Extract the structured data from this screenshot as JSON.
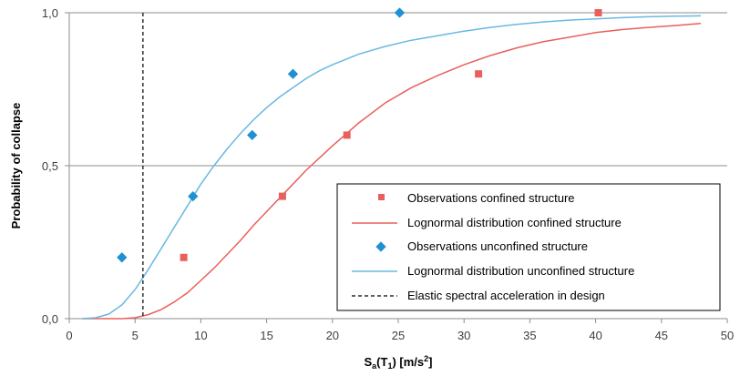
{
  "chart_data": {
    "type": "scatter",
    "xlabel": {
      "main": "S",
      "sub1": "a",
      "paren_open": "(T",
      "sub2": "1",
      "unit": ") [m/s",
      "sup": "2",
      "close": "]"
    },
    "ylabel": "Probability of collapse",
    "xlim": [
      0,
      50
    ],
    "ylim": [
      0,
      1
    ],
    "x_ticks": [
      0,
      5,
      10,
      15,
      20,
      25,
      30,
      35,
      40,
      45,
      50
    ],
    "y_ticks": [
      0,
      0.5,
      1
    ],
    "y_tick_labels": [
      "0,0",
      "0,5",
      "1,0"
    ],
    "grid": "horizontal",
    "legend_position": "bottom-right",
    "series": [
      {
        "name": "Observations confined structure",
        "kind": "scatter",
        "marker": "square",
        "color": "#e8605d",
        "x": [
          8.7,
          16.2,
          21.1,
          31.1,
          40.2
        ],
        "y": [
          0.2,
          0.4,
          0.6,
          0.8,
          1.0
        ]
      },
      {
        "name": "Lognormal distribution confined structure",
        "kind": "line",
        "color": "#e8605d",
        "x": [
          1,
          2,
          3,
          4,
          5,
          6,
          7,
          8,
          9,
          10,
          11,
          12,
          13,
          14,
          15,
          16,
          17,
          18,
          19,
          20,
          22,
          24,
          26,
          28,
          30,
          32,
          34,
          36,
          38,
          40,
          42,
          44,
          46,
          48
        ],
        "y": [
          0,
          0,
          0,
          0,
          0.003,
          0.013,
          0.03,
          0.055,
          0.085,
          0.125,
          0.165,
          0.21,
          0.255,
          0.305,
          0.35,
          0.395,
          0.44,
          0.485,
          0.525,
          0.565,
          0.64,
          0.705,
          0.755,
          0.795,
          0.83,
          0.86,
          0.885,
          0.905,
          0.92,
          0.935,
          0.945,
          0.952,
          0.958,
          0.965
        ]
      },
      {
        "name": "Observations unconfined structure",
        "kind": "scatter",
        "marker": "diamond",
        "color": "#1f90d0",
        "x": [
          4.0,
          9.4,
          13.9,
          17.0,
          25.1
        ],
        "y": [
          0.2,
          0.4,
          0.6,
          0.8,
          1.0
        ]
      },
      {
        "name": "Lognormal distribution unconfined structure",
        "kind": "line",
        "color": "#6ab8e2",
        "x": [
          1,
          2,
          3,
          4,
          5,
          6,
          7,
          8,
          9,
          10,
          11,
          12,
          13,
          14,
          15,
          16,
          17,
          18,
          19,
          20,
          22,
          24,
          26,
          28,
          30,
          32,
          34,
          36,
          38,
          40,
          42,
          44,
          46,
          48
        ],
        "y": [
          0,
          0.003,
          0.015,
          0.045,
          0.095,
          0.16,
          0.23,
          0.3,
          0.37,
          0.44,
          0.5,
          0.555,
          0.605,
          0.65,
          0.69,
          0.725,
          0.755,
          0.785,
          0.81,
          0.83,
          0.865,
          0.89,
          0.91,
          0.925,
          0.94,
          0.952,
          0.962,
          0.97,
          0.976,
          0.98,
          0.984,
          0.987,
          0.989,
          0.99
        ]
      },
      {
        "name": "Elastic spectral acceleration in design",
        "kind": "vline",
        "color": "#000000",
        "dash": true,
        "x": 5.6
      }
    ]
  }
}
